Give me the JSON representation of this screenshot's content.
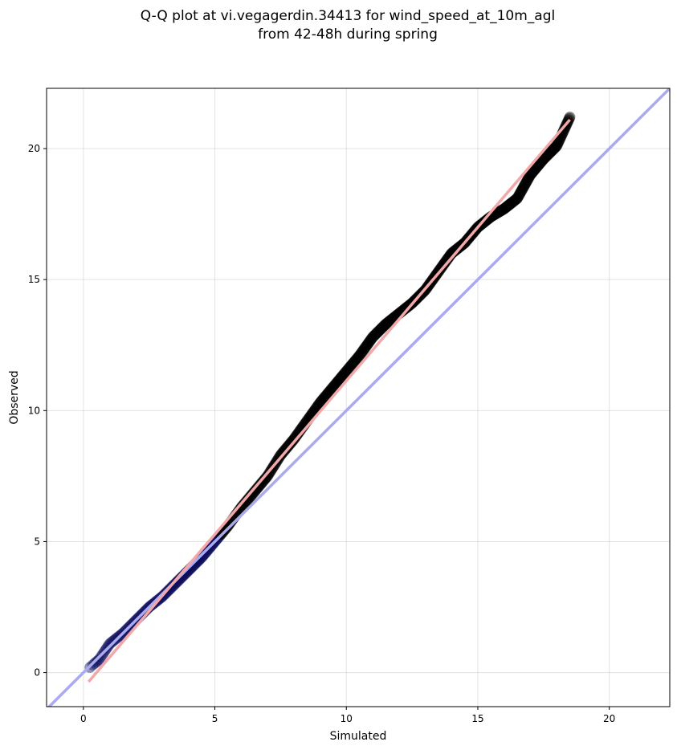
{
  "chart_data": {
    "type": "scatter",
    "title": "Q-Q plot at vi.vegagerdin.34413 for wind_speed_at_10m_agl",
    "subtitle": "from 42-48h during spring",
    "xlabel": "Simulated",
    "ylabel": "Observed",
    "xlim": [
      -1.4,
      22.3
    ],
    "ylim": [
      -1.3,
      22.3
    ],
    "xticks": [
      0,
      5,
      10,
      15,
      20
    ],
    "yticks": [
      0,
      5,
      10,
      15,
      20
    ],
    "grid": true,
    "legend": "none",
    "reference_line": {
      "x": [
        -1.4,
        22.3
      ],
      "y": [
        -1.4,
        22.3
      ],
      "color": "#aaaaf0"
    },
    "fit_line": {
      "x": [
        0.2,
        18.5
      ],
      "y": [
        -0.35,
        21.1
      ],
      "color": "#f2a8a8"
    },
    "quantile_knots": {
      "x": [
        0.25,
        0.6,
        1.0,
        1.5,
        2.0,
        2.5,
        3.0,
        3.5,
        4.0,
        4.5,
        5.0,
        5.5,
        6.0,
        6.5,
        7.0,
        7.5,
        8.0,
        8.5,
        9.0,
        9.5,
        10.0,
        10.5,
        11.0,
        11.5,
        12.0,
        12.5,
        13.0,
        13.5,
        14.0,
        14.5,
        15.0,
        15.5,
        16.0,
        16.5,
        17.0,
        17.5,
        18.0,
        18.5
      ],
      "y": [
        0.2,
        0.5,
        1.1,
        1.5,
        2.0,
        2.5,
        2.9,
        3.4,
        3.9,
        4.4,
        5.0,
        5.6,
        6.3,
        6.9,
        7.5,
        8.3,
        8.9,
        9.6,
        10.3,
        10.9,
        11.5,
        12.1,
        12.8,
        13.3,
        13.7,
        14.1,
        14.6,
        15.3,
        16.0,
        16.4,
        17.0,
        17.4,
        17.7,
        18.1,
        19.0,
        19.6,
        20.1,
        21.2
      ]
    },
    "n_points": 600,
    "point_color": "#000000",
    "low_end_point_color": "#0a0a5a"
  }
}
